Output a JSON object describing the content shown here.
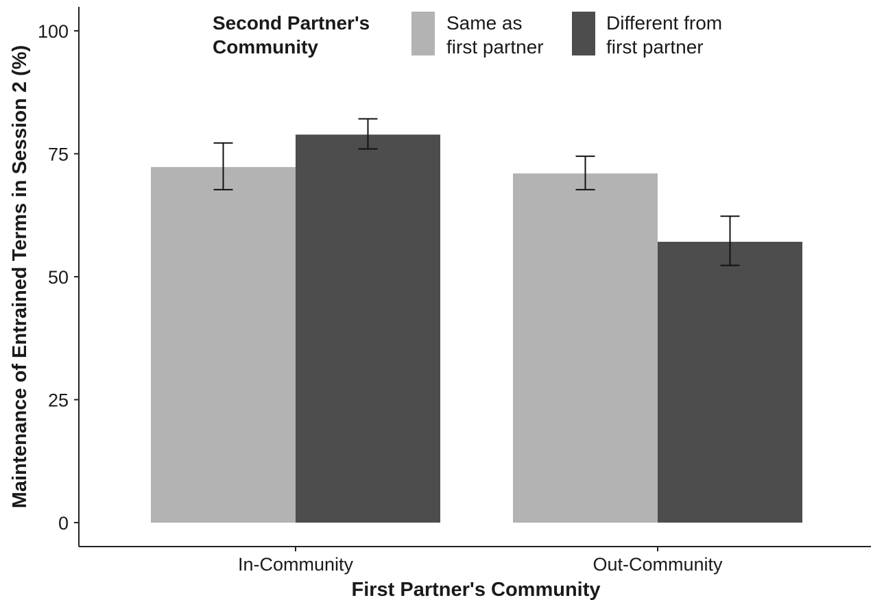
{
  "chart_data": {
    "type": "bar",
    "xlabel": "First Partner's Community",
    "ylabel": "Maintenance of Entrained Terms in Session 2 (%)",
    "ylim": [
      0,
      100
    ],
    "yticks": [
      0,
      25,
      50,
      75,
      100
    ],
    "grid": false,
    "legend_placement": "top",
    "categories": [
      "In-Community",
      "Out-Community"
    ],
    "legend": {
      "title_lines": [
        "Second Partner's",
        "Community"
      ]
    },
    "series": [
      {
        "name": "Same as first partner",
        "label_lines": [
          "Same as",
          "first partner"
        ],
        "color": "#b3b3b3",
        "values": [
          72.3,
          71.0
        ],
        "error_low": [
          67.7,
          67.7
        ],
        "error_high": [
          77.2,
          74.5
        ]
      },
      {
        "name": "Different from first partner",
        "label_lines": [
          "Different from",
          "first partner"
        ],
        "color": "#4d4d4d",
        "values": [
          78.9,
          57.1
        ],
        "error_low": [
          76.0,
          52.3
        ],
        "error_high": [
          82.1,
          62.3
        ]
      }
    ]
  }
}
